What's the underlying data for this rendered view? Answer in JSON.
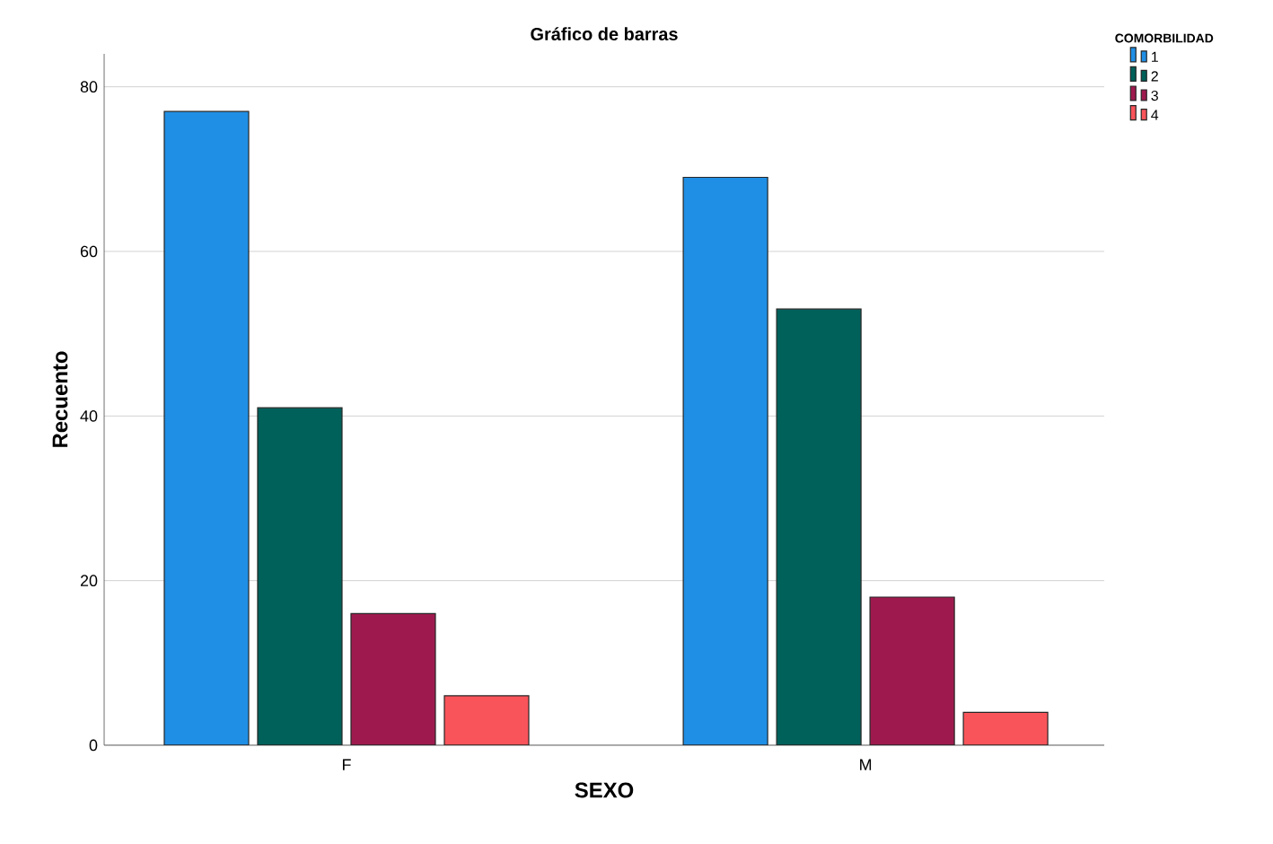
{
  "chart_data": {
    "type": "bar",
    "title": "Gráfico de barras",
    "xlabel": "SEXO",
    "ylabel": "Recuento",
    "legend_title": "COMORBILIDAD",
    "categories": [
      "F",
      "M"
    ],
    "series": [
      {
        "name": "1",
        "color": "#1f8fe5",
        "values": [
          77,
          69
        ]
      },
      {
        "name": "2",
        "color": "#00605a",
        "values": [
          41,
          53
        ]
      },
      {
        "name": "3",
        "color": "#9e1a4e",
        "values": [
          16,
          18
        ]
      },
      {
        "name": "4",
        "color": "#f9545a",
        "values": [
          6,
          4
        ]
      }
    ],
    "ylim": [
      0,
      84
    ],
    "yticks": [
      0,
      20,
      40,
      60,
      80
    ],
    "grid": "y",
    "legend": "top right"
  }
}
